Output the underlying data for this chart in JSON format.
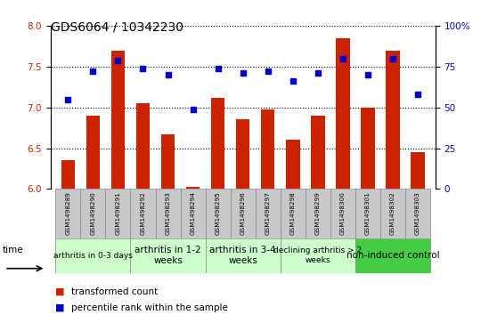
{
  "title": "GDS6064 / 10342230",
  "samples": [
    "GSM1498289",
    "GSM1498290",
    "GSM1498291",
    "GSM1498292",
    "GSM1498293",
    "GSM1498294",
    "GSM1498295",
    "GSM1498296",
    "GSM1498297",
    "GSM1498298",
    "GSM1498299",
    "GSM1498300",
    "GSM1498301",
    "GSM1498302",
    "GSM1498303"
  ],
  "bar_values": [
    6.35,
    6.9,
    7.7,
    7.05,
    6.67,
    6.03,
    7.12,
    6.85,
    6.98,
    6.6,
    6.9,
    7.85,
    7.0,
    7.7,
    6.45
  ],
  "dot_values": [
    55,
    72,
    79,
    74,
    70,
    49,
    74,
    71,
    72,
    66,
    71,
    80,
    70,
    80,
    58
  ],
  "bar_color": "#cc2200",
  "dot_color": "#0000cc",
  "ylim_left": [
    6.0,
    8.0
  ],
  "ylim_right": [
    0,
    100
  ],
  "yticks_left": [
    6.0,
    6.5,
    7.0,
    7.5,
    8.0
  ],
  "yticks_right": [
    0,
    25,
    50,
    75,
    100
  ],
  "ytick_labels_right": [
    "0",
    "25",
    "50",
    "75",
    "100%"
  ],
  "groups": [
    {
      "label": "arthritis in 0-3 days",
      "start": 0,
      "end": 3,
      "color": "#ccffcc",
      "fontsize": 6.5
    },
    {
      "label": "arthritis in 1-2\nweeks",
      "start": 3,
      "end": 6,
      "color": "#ccffcc",
      "fontsize": 7.5
    },
    {
      "label": "arthritis in 3-4\nweeks",
      "start": 6,
      "end": 9,
      "color": "#ccffcc",
      "fontsize": 7.5
    },
    {
      "label": "declining arthritis > 2\nweeks",
      "start": 9,
      "end": 12,
      "color": "#ccffcc",
      "fontsize": 6.5
    },
    {
      "label": "non-induced control",
      "start": 12,
      "end": 15,
      "color": "#44cc44",
      "fontsize": 7.5
    }
  ],
  "legend_bar_label": "transformed count",
  "legend_dot_label": "percentile rank within the sample",
  "time_label": "time",
  "bg_color": "#ffffff",
  "plot_bg_color": "#ffffff",
  "tick_color_left": "#cc2200",
  "tick_color_right": "#0000cc",
  "sample_box_color": "#c8c8c8"
}
